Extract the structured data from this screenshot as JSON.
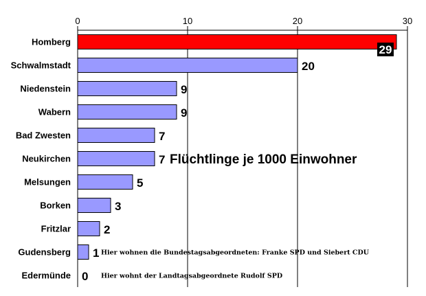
{
  "chart_data": {
    "type": "bar",
    "orientation": "horizontal",
    "title": "Flüchtlinge je 1000 Einwohner",
    "categories": [
      "Homberg",
      "Schwalmstadt",
      "Niedenstein",
      "Wabern",
      "Bad Zwesten",
      "Neukirchen",
      "Melsungen",
      "Borken",
      "Fritzlar",
      "Gudensberg",
      "Edermünde"
    ],
    "values": [
      29,
      20,
      9,
      9,
      7,
      7,
      5,
      3,
      2,
      1,
      0
    ],
    "highlight_index": 0,
    "xlim": [
      0,
      30
    ],
    "xticks": [
      0,
      10,
      20,
      30
    ],
    "grid": true,
    "colors": {
      "bar": "#9999ff",
      "highlight": "#ff0000",
      "highlight_label_bg": "#000000",
      "highlight_label_text": "#ffffff"
    },
    "annotations": [
      {
        "text": "Hier wohnen die  Bundestagsabgeordneten: Franke SPD und Siebert CDU",
        "category": "Gudensberg"
      },
      {
        "text": "Hier wohnt der Landtagsabgeordnete Rudolf SPD",
        "category": "Edermünde"
      }
    ]
  }
}
